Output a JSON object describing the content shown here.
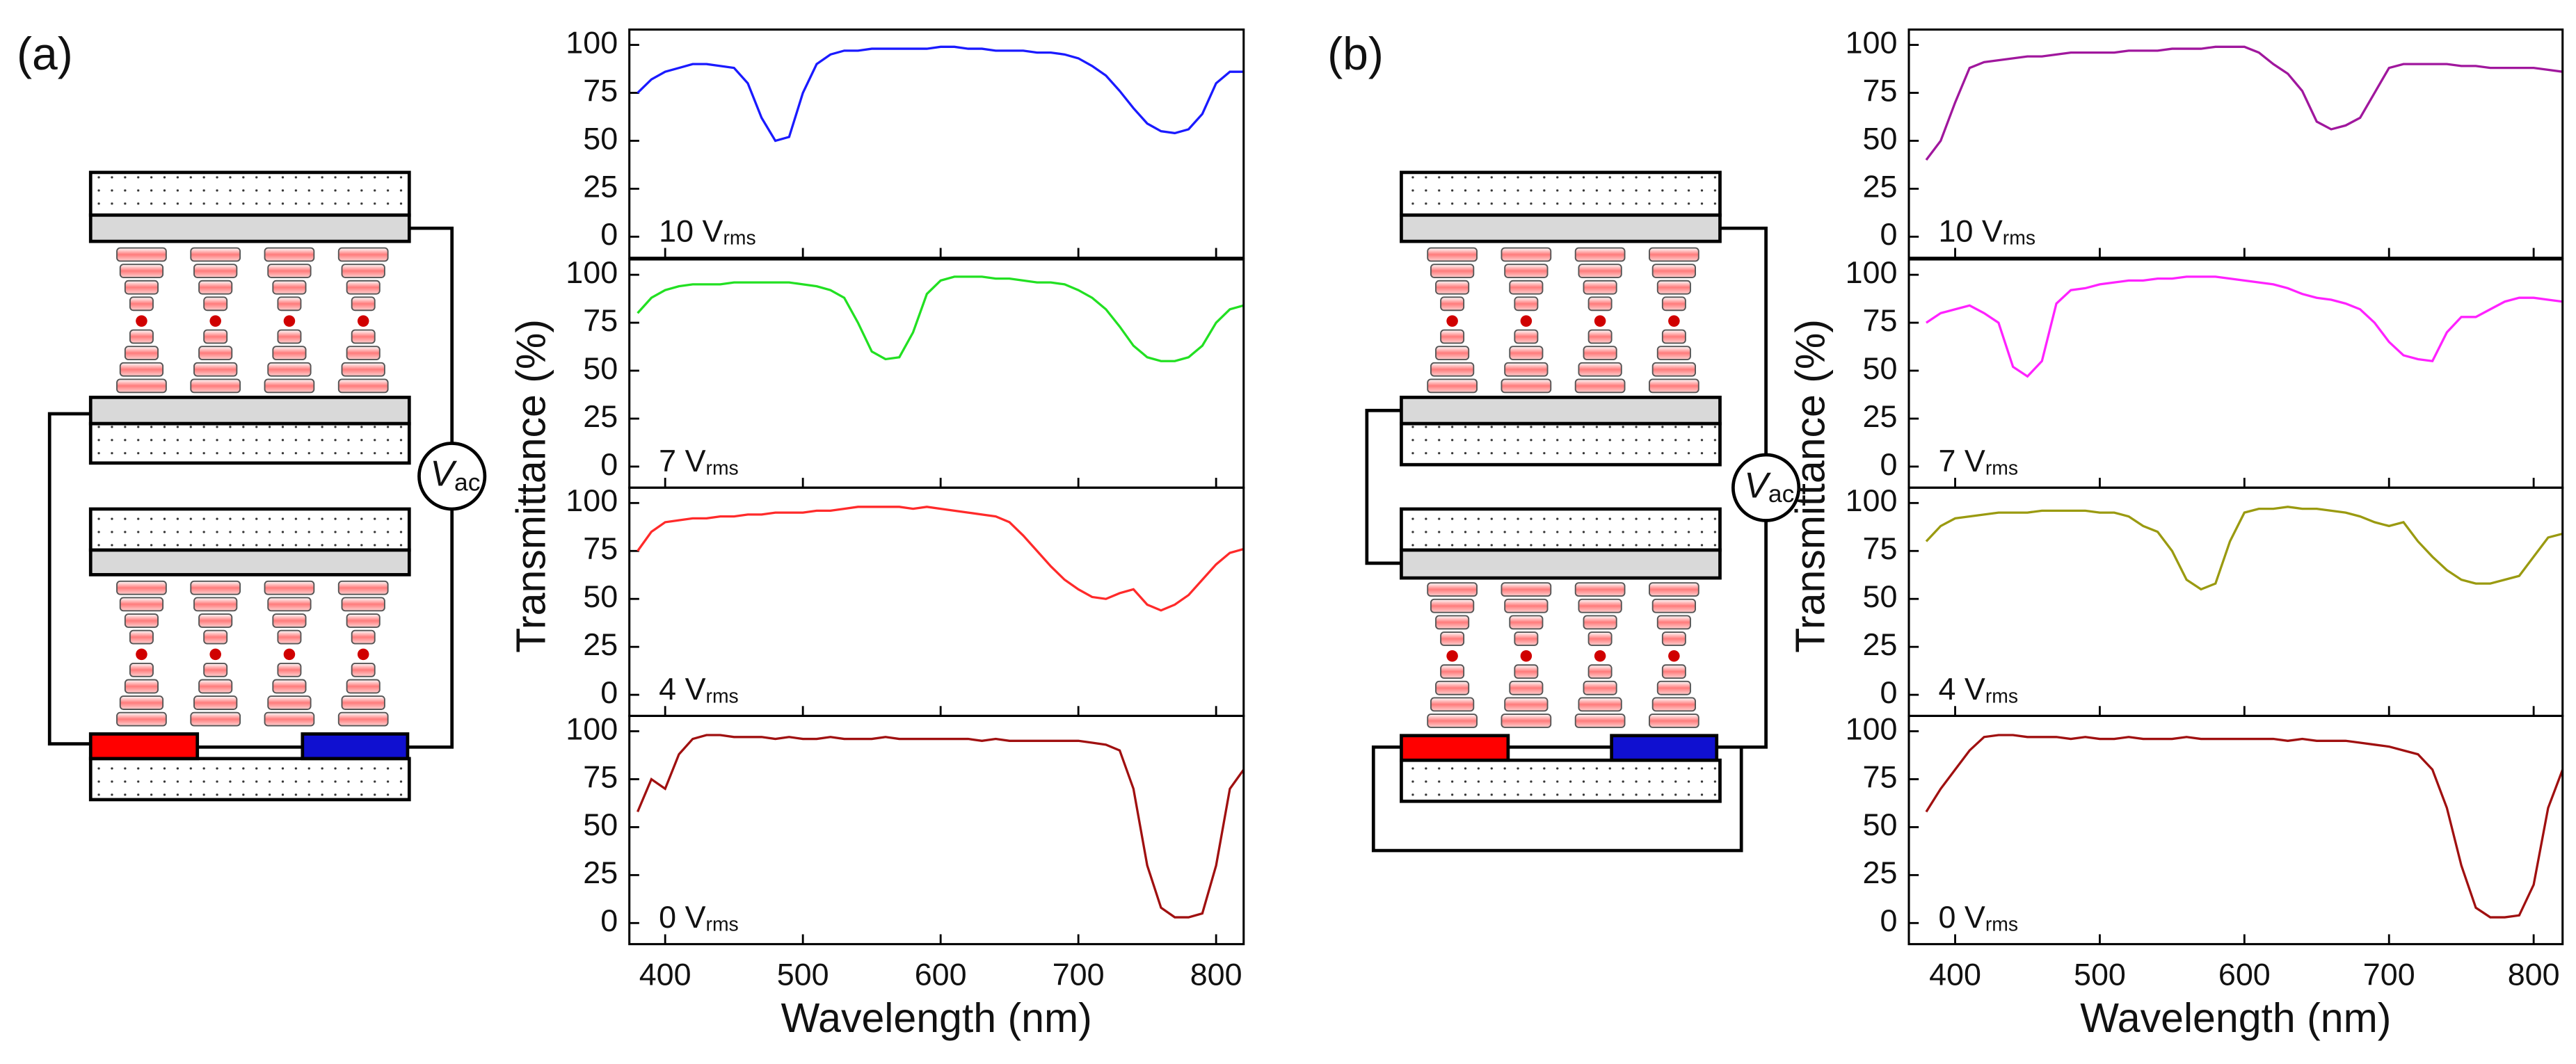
{
  "panels": [
    {
      "label": "(a)",
      "source": {
        "symbol": "V",
        "subscript": "ac"
      },
      "ylabel": "Transmittance (%)",
      "xlabel": "Wavelength (nm)"
    },
    {
      "label": "(b)",
      "source": {
        "symbol": "V",
        "subscript": "ac"
      },
      "ylabel": "Transmittance (%)",
      "xlabel": "Wavelength (nm)"
    }
  ],
  "chart_data": [
    {
      "type": "line",
      "annotation": {
        "text": "10 V",
        "subscript": "rms"
      },
      "xlim": [
        374,
        820
      ],
      "ylim": [
        -11,
        108
      ],
      "xticks": [
        400,
        500,
        600,
        700,
        800
      ],
      "yticks": [
        0,
        25,
        50,
        75,
        100
      ],
      "show_xtick_labels": false,
      "x": [
        380,
        390,
        400,
        410,
        420,
        430,
        440,
        450,
        460,
        470,
        480,
        490,
        500,
        510,
        520,
        530,
        540,
        550,
        560,
        570,
        580,
        590,
        600,
        610,
        620,
        630,
        640,
        650,
        660,
        670,
        680,
        690,
        700,
        710,
        720,
        730,
        740,
        750,
        760,
        770,
        780,
        790,
        800,
        810,
        820
      ],
      "series": [
        {
          "color": "#1a1aff",
          "values": [
            75,
            82,
            86,
            88,
            90,
            90,
            89,
            88,
            80,
            62,
            50,
            52,
            75,
            90,
            95,
            97,
            97,
            98,
            98,
            98,
            98,
            98,
            99,
            99,
            98,
            98,
            97,
            97,
            97,
            96,
            96,
            95,
            93,
            89,
            84,
            76,
            67,
            59,
            55,
            54,
            56,
            64,
            80,
            86,
            86
          ]
        }
      ]
    },
    {
      "type": "line",
      "annotation": {
        "text": "7 V",
        "subscript": "rms"
      },
      "xlim": [
        374,
        820
      ],
      "ylim": [
        -11,
        108
      ],
      "xticks": [
        400,
        500,
        600,
        700,
        800
      ],
      "yticks": [
        0,
        25,
        50,
        75,
        100
      ],
      "show_xtick_labels": false,
      "x": [
        380,
        390,
        400,
        410,
        420,
        430,
        440,
        450,
        460,
        470,
        480,
        490,
        500,
        510,
        520,
        530,
        540,
        550,
        560,
        570,
        580,
        590,
        600,
        610,
        620,
        630,
        640,
        650,
        660,
        670,
        680,
        690,
        700,
        710,
        720,
        730,
        740,
        750,
        760,
        770,
        780,
        790,
        800,
        810,
        820
      ],
      "series": [
        {
          "color": "#22e022",
          "values": [
            80,
            88,
            92,
            94,
            95,
            95,
            95,
            96,
            96,
            96,
            96,
            96,
            95,
            94,
            92,
            88,
            75,
            60,
            56,
            57,
            70,
            90,
            97,
            99,
            99,
            99,
            98,
            98,
            97,
            96,
            96,
            95,
            92,
            88,
            82,
            73,
            63,
            57,
            55,
            55,
            57,
            63,
            75,
            82,
            84
          ]
        }
      ]
    },
    {
      "type": "line",
      "annotation": {
        "text": "4 V",
        "subscript": "rms"
      },
      "xlim": [
        374,
        820
      ],
      "ylim": [
        -11,
        108
      ],
      "xticks": [
        400,
        500,
        600,
        700,
        800
      ],
      "yticks": [
        0,
        25,
        50,
        75,
        100
      ],
      "show_xtick_labels": false,
      "x": [
        380,
        390,
        400,
        410,
        420,
        430,
        440,
        450,
        460,
        470,
        480,
        490,
        500,
        510,
        520,
        530,
        540,
        550,
        560,
        570,
        580,
        590,
        600,
        610,
        620,
        630,
        640,
        650,
        660,
        670,
        680,
        690,
        700,
        710,
        720,
        730,
        740,
        750,
        760,
        770,
        780,
        790,
        800,
        810,
        820
      ],
      "series": [
        {
          "color": "#ff2a2a",
          "values": [
            75,
            85,
            90,
            91,
            92,
            92,
            93,
            93,
            94,
            94,
            95,
            95,
            95,
            96,
            96,
            97,
            98,
            98,
            98,
            98,
            97,
            98,
            97,
            96,
            95,
            94,
            93,
            90,
            83,
            75,
            67,
            60,
            55,
            51,
            50,
            53,
            55,
            47,
            44,
            47,
            52,
            60,
            68,
            74,
            76
          ]
        }
      ]
    },
    {
      "type": "line",
      "annotation": {
        "text": "0 V",
        "subscript": "rms"
      },
      "xlim": [
        374,
        820
      ],
      "ylim": [
        -11,
        108
      ],
      "xticks": [
        400,
        500,
        600,
        700,
        800
      ],
      "yticks": [
        0,
        25,
        50,
        75,
        100
      ],
      "show_xtick_labels": true,
      "x": [
        380,
        390,
        400,
        410,
        420,
        430,
        440,
        450,
        460,
        470,
        480,
        490,
        500,
        510,
        520,
        530,
        540,
        550,
        560,
        570,
        580,
        590,
        600,
        610,
        620,
        630,
        640,
        650,
        660,
        670,
        680,
        690,
        700,
        710,
        720,
        730,
        740,
        750,
        760,
        770,
        780,
        790,
        800,
        810,
        820
      ],
      "series": [
        {
          "color": "#a01010",
          "values": [
            58,
            75,
            70,
            88,
            96,
            98,
            98,
            97,
            97,
            97,
            96,
            97,
            96,
            96,
            97,
            96,
            96,
            96,
            97,
            96,
            96,
            96,
            96,
            96,
            96,
            95,
            96,
            95,
            95,
            95,
            95,
            95,
            95,
            94,
            93,
            90,
            70,
            30,
            8,
            3,
            3,
            5,
            30,
            70,
            80
          ]
        }
      ]
    },
    {
      "type": "line",
      "annotation": {
        "text": "10 V",
        "subscript": "rms"
      },
      "xlim": [
        368,
        820
      ],
      "ylim": [
        -11,
        108
      ],
      "xticks": [
        400,
        500,
        600,
        700,
        800
      ],
      "yticks": [
        0,
        25,
        50,
        75,
        100
      ],
      "show_xtick_labels": false,
      "x": [
        380,
        390,
        400,
        410,
        420,
        430,
        440,
        450,
        460,
        470,
        480,
        490,
        500,
        510,
        520,
        530,
        540,
        550,
        560,
        570,
        580,
        590,
        600,
        610,
        620,
        630,
        640,
        650,
        660,
        670,
        680,
        690,
        700,
        710,
        720,
        730,
        740,
        750,
        760,
        770,
        780,
        790,
        800,
        810,
        820
      ],
      "series": [
        {
          "color": "#a0179d",
          "values": [
            40,
            50,
            70,
            88,
            91,
            92,
            93,
            94,
            94,
            95,
            96,
            96,
            96,
            96,
            97,
            97,
            97,
            98,
            98,
            98,
            99,
            99,
            99,
            96,
            90,
            85,
            76,
            60,
            56,
            58,
            62,
            75,
            88,
            90,
            90,
            90,
            90,
            89,
            89,
            88,
            88,
            88,
            88,
            87,
            86
          ]
        }
      ]
    },
    {
      "type": "line",
      "annotation": {
        "text": "7 V",
        "subscript": "rms"
      },
      "xlim": [
        368,
        820
      ],
      "ylim": [
        -11,
        108
      ],
      "xticks": [
        400,
        500,
        600,
        700,
        800
      ],
      "yticks": [
        0,
        25,
        50,
        75,
        100
      ],
      "show_xtick_labels": false,
      "x": [
        380,
        390,
        400,
        410,
        420,
        430,
        440,
        450,
        460,
        470,
        480,
        490,
        500,
        510,
        520,
        530,
        540,
        550,
        560,
        570,
        580,
        590,
        600,
        610,
        620,
        630,
        640,
        650,
        660,
        670,
        680,
        690,
        700,
        710,
        720,
        730,
        740,
        750,
        760,
        770,
        780,
        790,
        800,
        810,
        820
      ],
      "series": [
        {
          "color": "#ff22ff",
          "values": [
            75,
            80,
            82,
            84,
            80,
            75,
            52,
            47,
            55,
            85,
            92,
            93,
            95,
            96,
            97,
            97,
            98,
            98,
            99,
            99,
            99,
            98,
            97,
            96,
            95,
            93,
            90,
            88,
            87,
            85,
            82,
            75,
            65,
            58,
            56,
            55,
            70,
            78,
            78,
            82,
            86,
            88,
            88,
            87,
            86
          ]
        }
      ]
    },
    {
      "type": "line",
      "annotation": {
        "text": "4 V",
        "subscript": "rms"
      },
      "xlim": [
        368,
        820
      ],
      "ylim": [
        -11,
        108
      ],
      "xticks": [
        400,
        500,
        600,
        700,
        800
      ],
      "yticks": [
        0,
        25,
        50,
        75,
        100
      ],
      "show_xtick_labels": false,
      "x": [
        380,
        390,
        400,
        410,
        420,
        430,
        440,
        450,
        460,
        470,
        480,
        490,
        500,
        510,
        520,
        530,
        540,
        550,
        560,
        570,
        580,
        590,
        600,
        610,
        620,
        630,
        640,
        650,
        660,
        670,
        680,
        690,
        700,
        710,
        720,
        730,
        740,
        750,
        760,
        770,
        780,
        790,
        800,
        810,
        820
      ],
      "series": [
        {
          "color": "#9a9a10",
          "values": [
            80,
            88,
            92,
            93,
            94,
            95,
            95,
            95,
            96,
            96,
            96,
            96,
            95,
            95,
            93,
            88,
            85,
            75,
            60,
            55,
            58,
            80,
            95,
            97,
            97,
            98,
            97,
            97,
            96,
            95,
            93,
            90,
            88,
            90,
            80,
            72,
            65,
            60,
            58,
            58,
            60,
            62,
            72,
            82,
            84
          ]
        }
      ]
    },
    {
      "type": "line",
      "annotation": {
        "text": "0 V",
        "subscript": "rms"
      },
      "xlim": [
        368,
        820
      ],
      "ylim": [
        -11,
        108
      ],
      "xticks": [
        400,
        500,
        600,
        700,
        800
      ],
      "yticks": [
        0,
        25,
        50,
        75,
        100
      ],
      "show_xtick_labels": true,
      "x": [
        380,
        390,
        400,
        410,
        420,
        430,
        440,
        450,
        460,
        470,
        480,
        490,
        500,
        510,
        520,
        530,
        540,
        550,
        560,
        570,
        580,
        590,
        600,
        610,
        620,
        630,
        640,
        650,
        660,
        670,
        680,
        690,
        700,
        710,
        720,
        730,
        740,
        750,
        760,
        770,
        780,
        790,
        800,
        810,
        820
      ],
      "series": [
        {
          "color": "#a01010",
          "values": [
            58,
            70,
            80,
            90,
            97,
            98,
            98,
            97,
            97,
            97,
            96,
            97,
            96,
            96,
            97,
            96,
            96,
            96,
            97,
            96,
            96,
            96,
            96,
            96,
            96,
            95,
            96,
            95,
            95,
            95,
            94,
            93,
            92,
            90,
            88,
            80,
            60,
            30,
            8,
            3,
            3,
            4,
            20,
            60,
            80
          ]
        }
      ]
    }
  ]
}
